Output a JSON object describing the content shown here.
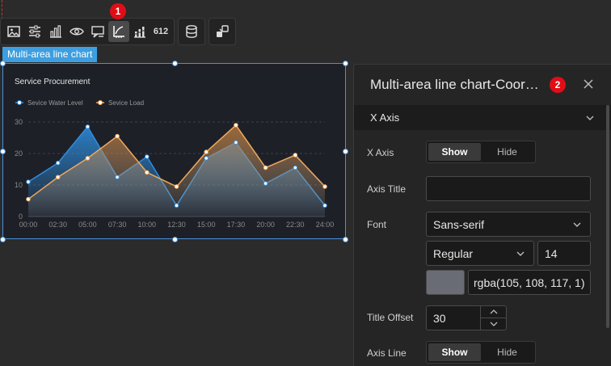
{
  "toolbar": {
    "badge": "1",
    "tools": [
      "image-icon",
      "sliders-icon",
      "bar-chart-icon",
      "eye-target-icon",
      "comment-icon",
      "axis-icon",
      "stacked-bar-icon",
      "number-612-icon",
      "database-icon",
      "link-icon"
    ],
    "number_label": "612"
  },
  "chart": {
    "tag_label": "Multi-area line chart",
    "chart_data": {
      "type": "area",
      "title": "Service Procurement",
      "categories": [
        "00:00",
        "02:30",
        "05:00",
        "07:30",
        "10:00",
        "12:30",
        "15:00",
        "17:30",
        "20:00",
        "22:30",
        "24:00"
      ],
      "series": [
        {
          "name": "Sevice Water Level",
          "values": [
            11,
            17,
            28.5,
            12.5,
            19,
            3.5,
            18.5,
            23.5,
            10.5,
            15.5,
            3.5
          ],
          "color": "#2e8fe0"
        },
        {
          "name": "Sevice Load",
          "values": [
            5.5,
            12.5,
            18.5,
            25.5,
            14,
            9.5,
            20.5,
            29,
            15.5,
            19.5,
            9.5
          ],
          "color": "#f0a85a"
        }
      ],
      "yticks": [
        0,
        10,
        20,
        30
      ],
      "ylim": [
        0,
        30
      ],
      "grid": true,
      "legend": "top-left"
    }
  },
  "panel": {
    "title": "Multi-area line chart-Coordinate axis",
    "badge": "2",
    "section": "X Axis",
    "x_axis": {
      "label": "X Axis",
      "show": "Show",
      "hide": "Hide",
      "selected": "Show"
    },
    "axis_title": {
      "label": "Axis Title",
      "value": ""
    },
    "font": {
      "label": "Font",
      "family": "Sans-serif",
      "weight": "Regular",
      "size": "14",
      "color": "rgba(105, 108, 117, 1)",
      "swatch_color": "#696c75"
    },
    "title_offset": {
      "label": "Title Offset",
      "value": "30"
    },
    "axis_line": {
      "label": "Axis Line",
      "show": "Show",
      "hide": "Hide",
      "selected": "Show"
    }
  }
}
